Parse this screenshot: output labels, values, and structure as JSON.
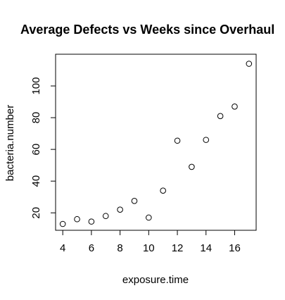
{
  "chart_data": {
    "type": "scatter",
    "title": "Average Defects vs Weeks since Overhaul",
    "xlabel": "exposure.time",
    "ylabel": "bacteria.number",
    "xlim": [
      3.5,
      17.5
    ],
    "ylim": [
      9,
      120
    ],
    "x_ticks": [
      4,
      6,
      8,
      10,
      12,
      14,
      16
    ],
    "y_ticks": [
      20,
      40,
      60,
      80,
      100
    ],
    "x": [
      4,
      5,
      6,
      7,
      8,
      9,
      10,
      11,
      12,
      13,
      14,
      15,
      16,
      17
    ],
    "y": [
      13,
      16,
      14.5,
      18,
      22,
      27.5,
      17,
      34,
      65.5,
      49,
      66,
      81,
      87,
      114
    ],
    "grid": false,
    "marker": "open-circle"
  }
}
